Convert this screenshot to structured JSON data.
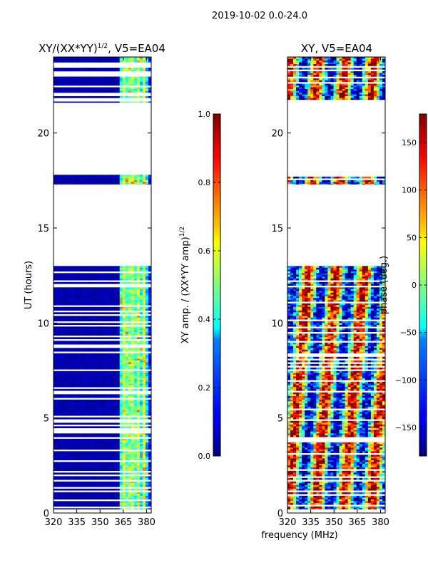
{
  "suptitle": "2019-10-02 0.0-24.0",
  "xlabel_shared": "frequency (MHz)",
  "colors": {
    "jet_dark_blue": "#00007f",
    "jet_blue": "#0000ff",
    "jet_cyan": "#00ffff",
    "jet_yellow": "#ffff00",
    "jet_red": "#ff0000",
    "jet_dark_red": "#7f0000"
  },
  "chart_data": [
    {
      "type": "heatmap",
      "title_main": "XY/(XX*YY)",
      "title_exp": "1/2",
      "title_suffix": ", V5=EA04",
      "xlabel": "",
      "ylabel": "UT (hours)",
      "x_range": [
        320,
        383
      ],
      "y_range": [
        0,
        24
      ],
      "x_ticks": [
        320,
        335,
        350,
        365,
        380
      ],
      "y_ticks": [
        0,
        5,
        10,
        15,
        20
      ],
      "colormap": "jet",
      "description": "mostly low amplitude (~0.0-0.1); brighter vertical stripes ~0.3-0.7 between 363-381 MHz",
      "data_blocks_hours": [
        [
          0.2,
          13.0
        ],
        [
          17.3,
          17.8
        ],
        [
          21.6,
          24.0
        ]
      ],
      "colorbar": {
        "label_main": "XY amp. / (XX*YY amp)",
        "label_exp": "1/2",
        "range": [
          0.0,
          1.0
        ],
        "ticks": [
          "0.0",
          "0.2",
          "0.4",
          "0.6",
          "0.8",
          "1.0"
        ]
      }
    },
    {
      "type": "heatmap",
      "title_main": "XY, V5=EA04",
      "xlabel": "frequency (MHz)",
      "ylabel": "",
      "x_range": [
        320,
        383
      ],
      "y_range": [
        0,
        24
      ],
      "x_ticks": [
        320,
        335,
        350,
        365,
        380
      ],
      "y_ticks": [
        0,
        5,
        10,
        15,
        20
      ],
      "colormap": "jet",
      "description": "phase varies from -180 to 180 deg across full band, speckled texture",
      "data_blocks_hours": [
        [
          0.2,
          13.0
        ],
        [
          17.3,
          17.8
        ],
        [
          21.6,
          24.0
        ]
      ],
      "colorbar": {
        "label_main": "phase (deg.)",
        "range": [
          -180,
          180
        ],
        "ticks": [
          "−150",
          "−100",
          "−50",
          "0",
          "50",
          "100",
          "150"
        ]
      }
    }
  ]
}
